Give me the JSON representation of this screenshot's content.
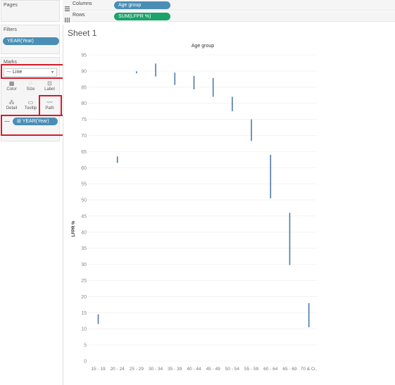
{
  "left_panel": {
    "pages_title": "Pages",
    "filters_title": "Filters",
    "filter_pill": "YEAR(Year)",
    "marks_title": "Marks",
    "mark_type": "Line",
    "mark_buttons": [
      "Color",
      "Size",
      "Label",
      "Detail",
      "Tooltip",
      "Path"
    ],
    "path_pill": "YEAR(Year)"
  },
  "shelves": {
    "columns_label": "Columns",
    "columns_pill": "Age group",
    "rows_label": "Rows",
    "rows_pill": "SUM(LFPR %)"
  },
  "sheet": {
    "title": "Sheet 1"
  },
  "colors": {
    "accent_blue": "#4a8eb5",
    "accent_green": "#1aa36b",
    "highlight_red": "#d21c2b",
    "mark_color": "#4e79a7"
  },
  "chart_data": {
    "type": "line",
    "title": "Age group",
    "ylabel": "LFPR %",
    "categories": [
      "15 - 19",
      "20 - 24",
      "25 - 29",
      "30 - 34",
      "35 - 39",
      "40 - 44",
      "45 - 49",
      "50 - 54",
      "55 - 59",
      "60 - 64",
      "65 - 69",
      "70 & O.."
    ],
    "ranges": [
      [
        11.5,
        14.5
      ],
      [
        61.5,
        63.5
      ],
      [
        89.3,
        89.9
      ],
      [
        88.3,
        92.3
      ],
      [
        85.7,
        89.5
      ],
      [
        84.3,
        88.5
      ],
      [
        82.0,
        87.8
      ],
      [
        77.5,
        82.0
      ],
      [
        68.3,
        75.0
      ],
      [
        50.5,
        64.0
      ],
      [
        29.8,
        46.0
      ],
      [
        10.5,
        18.0
      ]
    ],
    "ylim": [
      0,
      95
    ],
    "yticks": [
      0,
      5,
      10,
      15,
      20,
      25,
      30,
      35,
      40,
      45,
      50,
      55,
      60,
      65,
      70,
      75,
      80,
      85,
      90,
      95
    ],
    "grid": true
  }
}
